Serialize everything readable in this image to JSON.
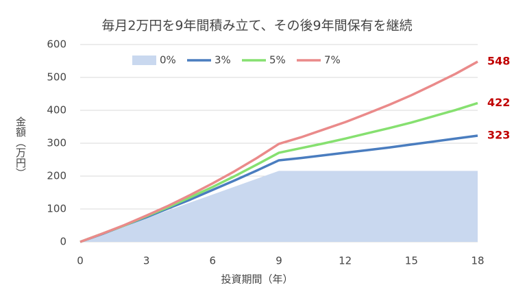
{
  "chart_data": {
    "type": "line",
    "title": "毎月2万円を9年間積み立て、その後9年間保有を継続",
    "x_label": "投資期間（年）",
    "y_label": "金額（万円）",
    "x": [
      0,
      1,
      2,
      3,
      4,
      5,
      6,
      7,
      8,
      9,
      10,
      11,
      12,
      13,
      14,
      15,
      16,
      17,
      18
    ],
    "xlim": [
      0,
      18
    ],
    "xticks": [
      0,
      3,
      6,
      9,
      12,
      15,
      18
    ],
    "ylim": [
      0,
      600
    ],
    "yticks": [
      0,
      100,
      200,
      300,
      400,
      500,
      600
    ],
    "grid": true,
    "legend": "top",
    "series": [
      {
        "name": "0%",
        "type": "area",
        "color": "#c9d8ef",
        "values": [
          0,
          24,
          48,
          72,
          96,
          120,
          144,
          168,
          192,
          216,
          216,
          216,
          216,
          216,
          216,
          216,
          216,
          216,
          216
        ]
      },
      {
        "name": "3%",
        "type": "line",
        "color": "#4a7dbf",
        "values": [
          0,
          24,
          50,
          75,
          102,
          129,
          158,
          187,
          217,
          248,
          255,
          263,
          271,
          279,
          287,
          296,
          305,
          314,
          323
        ]
      },
      {
        "name": "5%",
        "type": "line",
        "color": "#86e070",
        "values": [
          0,
          25,
          50,
          78,
          106,
          136,
          167,
          200,
          235,
          271,
          285,
          299,
          314,
          330,
          346,
          363,
          382,
          401,
          422
        ]
      },
      {
        "name": "7%",
        "type": "line",
        "color": "#ea8a8a",
        "values": [
          0,
          25,
          51,
          80,
          110,
          143,
          178,
          215,
          255,
          298,
          318,
          341,
          364,
          390,
          417,
          446,
          478,
          511,
          548
        ]
      }
    ]
  }
}
